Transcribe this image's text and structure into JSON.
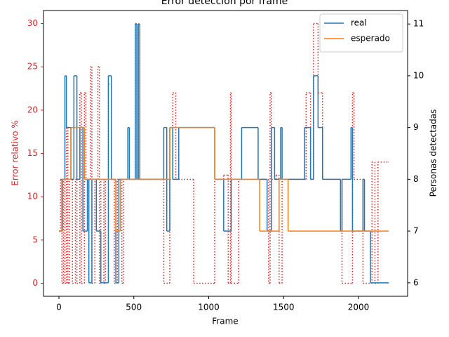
{
  "chart_data": {
    "type": "step",
    "title": "Error detección por frame",
    "x_label": "Frame",
    "y_label": "Error relativo %",
    "y2_label": "Personas detectadas",
    "xlim": [
      -103,
      2328
    ],
    "xticks": [
      0,
      500,
      1000,
      1500,
      2000
    ],
    "ylim": [
      -1.5,
      31.5
    ],
    "yticks": [
      0,
      5,
      10,
      15,
      20,
      25,
      30
    ],
    "y2lim": [
      5.74,
      11.26
    ],
    "y2ticks": [
      6,
      7,
      8,
      9,
      10,
      11
    ],
    "y_color": "#d62728",
    "legend": "upper right",
    "series": [
      {
        "color": "#d62728",
        "style": "dotted",
        "x": [
          0,
          10,
          20,
          30,
          40,
          50,
          60,
          70,
          90,
          110,
          120,
          140,
          150,
          170,
          180,
          200,
          210,
          220,
          240,
          260,
          270,
          280,
          300,
          310,
          330,
          350,
          370,
          390,
          420,
          430,
          500,
          510,
          530,
          560,
          680,
          700,
          740,
          760,
          780,
          900,
          1040,
          1080,
          1100,
          1130,
          1145,
          1150,
          1200,
          1340,
          1400,
          1410,
          1420,
          1450,
          1470,
          1490,
          1650,
          1680,
          1700,
          1730,
          1760,
          1890,
          1960,
          1970,
          2030,
          2090,
          2110,
          2130,
          2200
        ],
        "values": [
          6,
          12,
          0,
          12,
          0,
          18,
          0,
          12,
          0,
          12,
          0,
          22,
          0,
          22,
          12,
          12,
          25,
          0,
          12,
          25,
          0,
          12,
          0,
          12,
          23,
          12,
          0,
          12,
          0,
          12,
          12,
          30,
          12,
          12,
          12,
          0,
          12,
          22,
          12,
          0,
          12,
          12,
          12.5,
          0,
          22,
          0,
          12,
          12,
          0,
          22,
          12,
          12.5,
          0,
          12,
          22,
          12,
          30,
          22,
          12,
          0,
          22,
          12,
          0,
          14,
          0,
          14,
          14
        ]
      },
      {
        "name": "real",
        "color": "#1f77b4",
        "style": "solid",
        "axis": "y2",
        "x": [
          0,
          20,
          40,
          50,
          80,
          100,
          120,
          140,
          160,
          190,
          200,
          220,
          250,
          280,
          330,
          350,
          380,
          400,
          460,
          470,
          510,
          520,
          530,
          540,
          700,
          720,
          740,
          760,
          800,
          1040,
          1100,
          1150,
          1220,
          1330,
          1390,
          1420,
          1440,
          1480,
          1490,
          1640,
          1680,
          1700,
          1730,
          1760,
          1880,
          1890,
          1950,
          1960,
          2030,
          2040,
          2080,
          2200
        ],
        "values": [
          7,
          8,
          10,
          9,
          8,
          10,
          8,
          9,
          7,
          8,
          6,
          8,
          7,
          6,
          10,
          8,
          6,
          8,
          9,
          8,
          11,
          8,
          11,
          8,
          9,
          7,
          9,
          8,
          9,
          8,
          7,
          8,
          9,
          8,
          7,
          9,
          8,
          9,
          8,
          9,
          8,
          10,
          9,
          8,
          7,
          8,
          9,
          7,
          8,
          7,
          6,
          6
        ]
      },
      {
        "name": "esperado",
        "color": "#ff7f0e",
        "style": "solid",
        "axis": "y2",
        "x": [
          0,
          25,
          80,
          170,
          380,
          410,
          740,
          1040,
          1340,
          1470,
          1530,
          2200
        ],
        "values": [
          7,
          8,
          9,
          8,
          7,
          8,
          9,
          8,
          7,
          8,
          7,
          7
        ]
      }
    ]
  }
}
